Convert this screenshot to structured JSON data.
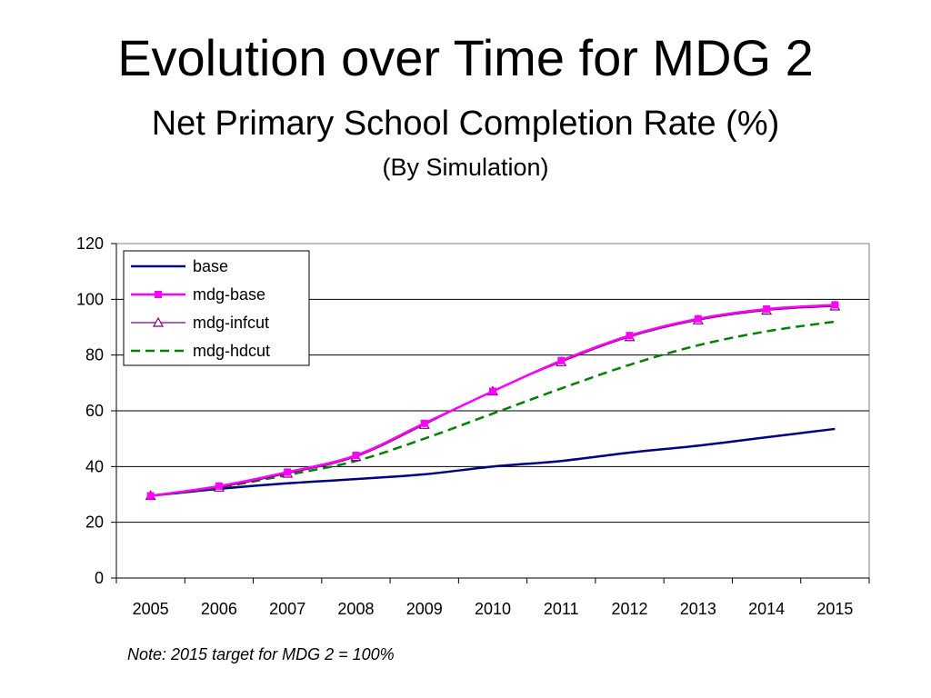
{
  "slide": {
    "title": "Evolution over Time for MDG 2",
    "subtitle": "Net Primary School Completion Rate (%)",
    "subsubtitle": "(By Simulation)",
    "note": "Note: 2015 target for MDG 2 = 100%"
  },
  "chart_data": {
    "type": "line",
    "title": "",
    "xlabel": "",
    "ylabel": "",
    "categories": [
      "2005",
      "2006",
      "2007",
      "2008",
      "2009",
      "2010",
      "2011",
      "2012",
      "2013",
      "2014",
      "2015"
    ],
    "ylim": [
      0,
      120
    ],
    "yticks": [
      0,
      20,
      40,
      60,
      80,
      100,
      120
    ],
    "grid": "horizontal major gridlines at 20, 40, 60, 80, 100",
    "legend_position": "top-left inside plot",
    "series": [
      {
        "name": "base",
        "values": [
          29.5,
          32,
          34,
          35.5,
          37.2,
          40,
          42,
          45,
          47.5,
          50.5,
          53.5
        ],
        "color": "#000080",
        "style": "solid",
        "marker": "none"
      },
      {
        "name": "mdg-base",
        "values": [
          29.5,
          33,
          38,
          44,
          55.5,
          67,
          78,
          87,
          93,
          96.5,
          98
        ],
        "color": "#ff00ff",
        "style": "solid",
        "marker": "square"
      },
      {
        "name": "mdg-infcut",
        "values": [
          29.5,
          32.5,
          37.5,
          43.5,
          55,
          67,
          77.5,
          86.5,
          92.5,
          96,
          97.5
        ],
        "color": "#800080",
        "style": "solid",
        "marker": "triangle-open"
      },
      {
        "name": "mdg-hdcut",
        "values": [
          29.5,
          32.5,
          37,
          42,
          50,
          59,
          68,
          76.5,
          83.5,
          88.5,
          92
        ],
        "color": "#008000",
        "style": "dashed",
        "marker": "none"
      }
    ]
  }
}
